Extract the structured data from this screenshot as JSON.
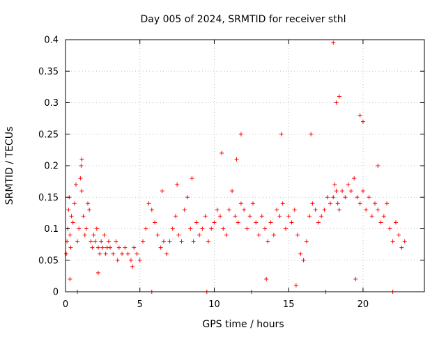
{
  "chart_data": {
    "type": "scatter",
    "title": "Day 005 of 2024, SRMTID for receiver sthl",
    "xlabel": "GPS time / hours",
    "ylabel": "SRMTID / TECUs",
    "xlim": [
      0,
      24.125
    ],
    "ylim": [
      0,
      0.4
    ],
    "x_ticks": [
      0,
      5,
      10,
      15,
      20
    ],
    "x_tick_labels": [
      "0",
      "5",
      "10",
      "15",
      "20"
    ],
    "y_ticks": [
      0,
      0.05,
      0.1,
      0.15,
      0.2,
      0.25,
      0.3,
      0.35,
      0.4
    ],
    "y_tick_labels": [
      "0",
      "0.05",
      "0.1",
      "0.15",
      "0.2",
      "0.25",
      "0.3",
      "0.35",
      "0.4"
    ],
    "grid": true,
    "marker": "+",
    "series": [
      {
        "name": "SRMTID",
        "color": "#ff0000",
        "x": [
          0.05,
          0.1,
          0.15,
          0.2,
          0.25,
          0.3,
          0.35,
          0.4,
          0.5,
          0.6,
          0.7,
          0.8,
          0.9,
          1.0,
          1.05,
          1.1,
          1.2,
          1.3,
          1.4,
          1.5,
          1.6,
          1.7,
          1.8,
          1.9,
          2.0,
          2.1,
          2.2,
          2.3,
          2.4,
          2.5,
          2.6,
          2.7,
          2.8,
          2.9,
          3.0,
          3.2,
          3.4,
          3.6,
          3.8,
          4.0,
          4.2,
          4.4,
          4.6,
          4.8,
          5.0,
          5.2,
          5.4,
          5.6,
          5.8,
          6.0,
          6.2,
          6.4,
          6.6,
          6.8,
          7.0,
          7.2,
          7.4,
          7.6,
          7.8,
          8.0,
          8.2,
          8.4,
          8.6,
          8.8,
          9.0,
          9.2,
          9.4,
          9.6,
          9.8,
          10.0,
          10.2,
          10.4,
          10.6,
          10.8,
          11.0,
          11.2,
          11.4,
          11.6,
          11.8,
          12.0,
          12.2,
          12.4,
          12.6,
          12.8,
          13.0,
          13.2,
          13.4,
          13.6,
          13.8,
          14.0,
          14.2,
          14.4,
          14.6,
          14.8,
          15.0,
          15.2,
          15.4,
          15.6,
          15.8,
          16.0,
          16.2,
          16.4,
          16.6,
          16.8,
          17.0,
          17.2,
          17.4,
          17.6,
          17.8,
          18.0,
          18.1,
          18.2,
          18.3,
          18.4,
          18.6,
          18.8,
          19.0,
          19.2,
          19.4,
          19.6,
          19.8,
          20.0,
          20.2,
          20.4,
          20.6,
          20.8,
          21.0,
          21.2,
          21.4,
          21.6,
          21.8,
          22.0,
          22.2,
          22.4,
          22.6,
          22.8,
          0.3,
          0.8,
          1.1,
          2.2,
          3.5,
          4.5,
          5.8,
          6.5,
          7.5,
          8.5,
          9.5,
          10.5,
          11.5,
          11.8,
          12.5,
          13.5,
          14.5,
          15.5,
          16.5,
          17.5,
          18.0,
          18.2,
          18.4,
          19.5,
          19.8,
          20.0,
          21.0,
          22.0
        ],
        "y": [
          0.06,
          0.08,
          0.1,
          0.13,
          0.15,
          0.09,
          0.07,
          0.12,
          0.11,
          0.14,
          0.17,
          0.08,
          0.1,
          0.18,
          0.2,
          0.16,
          0.12,
          0.09,
          0.1,
          0.14,
          0.13,
          0.08,
          0.07,
          0.09,
          0.08,
          0.1,
          0.07,
          0.06,
          0.08,
          0.07,
          0.09,
          0.06,
          0.07,
          0.08,
          0.07,
          0.06,
          0.08,
          0.07,
          0.06,
          0.07,
          0.06,
          0.05,
          0.07,
          0.06,
          0.05,
          0.08,
          0.1,
          0.14,
          0.13,
          0.11,
          0.09,
          0.07,
          0.08,
          0.06,
          0.08,
          0.1,
          0.12,
          0.09,
          0.08,
          0.13,
          0.15,
          0.1,
          0.08,
          0.11,
          0.09,
          0.1,
          0.12,
          0.08,
          0.1,
          0.11,
          0.13,
          0.12,
          0.1,
          0.09,
          0.13,
          0.16,
          0.12,
          0.11,
          0.14,
          0.13,
          0.1,
          0.12,
          0.14,
          0.11,
          0.09,
          0.12,
          0.1,
          0.08,
          0.11,
          0.09,
          0.13,
          0.12,
          0.14,
          0.1,
          0.12,
          0.11,
          0.13,
          0.09,
          0.06,
          0.05,
          0.08,
          0.12,
          0.14,
          0.13,
          0.11,
          0.12,
          0.13,
          0.15,
          0.14,
          0.15,
          0.17,
          0.16,
          0.14,
          0.13,
          0.16,
          0.15,
          0.17,
          0.16,
          0.18,
          0.15,
          0.14,
          0.16,
          0.13,
          0.15,
          0.12,
          0.14,
          0.13,
          0.11,
          0.12,
          0.14,
          0.1,
          0.08,
          0.11,
          0.09,
          0.07,
          0.08,
          0.02,
          0.0,
          0.21,
          0.03,
          0.05,
          0.04,
          0.0,
          0.16,
          0.17,
          0.18,
          0.0,
          0.22,
          0.21,
          0.25,
          0.0,
          0.02,
          0.25,
          0.01,
          0.25,
          0.0,
          0.395,
          0.3,
          0.31,
          0.02,
          0.28,
          0.27,
          0.2,
          0.0
        ]
      }
    ]
  }
}
